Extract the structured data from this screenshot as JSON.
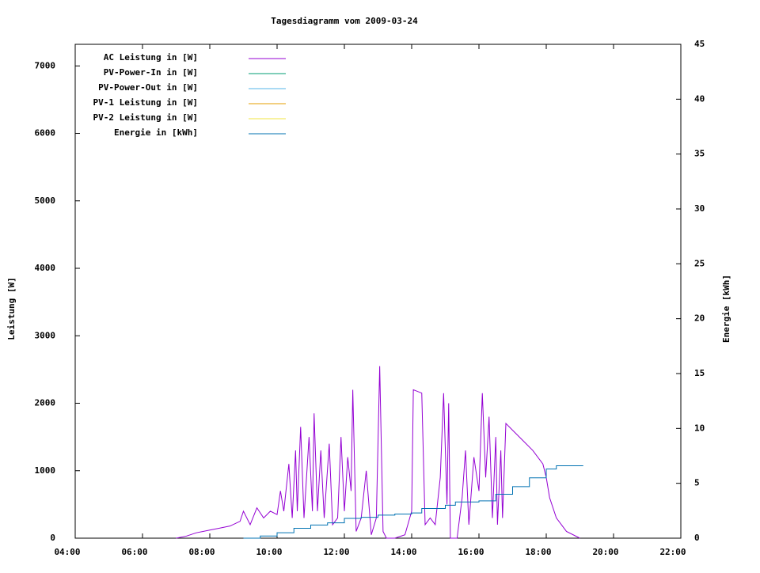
{
  "chart_data": {
    "type": "line",
    "title": "Tagesdiagramm vom 2009-03-24",
    "ylabel": "Leistung [W]",
    "y2label": "Energie [kWh]",
    "xlim": [
      4,
      22
    ],
    "xticks": [
      {
        "value": 4,
        "label": "04:00"
      },
      {
        "value": 6,
        "label": "06:00"
      },
      {
        "value": 8,
        "label": "08:00"
      },
      {
        "value": 10,
        "label": "10:00"
      },
      {
        "value": 12,
        "label": "12:00"
      },
      {
        "value": 14,
        "label": "14:00"
      },
      {
        "value": 16,
        "label": "16:00"
      },
      {
        "value": 18,
        "label": "18:00"
      },
      {
        "value": 20,
        "label": "20:00"
      },
      {
        "value": 22,
        "label": "22:00"
      }
    ],
    "ylim": [
      0,
      7320
    ],
    "yticks": [
      0,
      1000,
      2000,
      3000,
      4000,
      5000,
      6000,
      7000
    ],
    "y2lim": [
      0,
      45
    ],
    "y2ticks": [
      0,
      5,
      10,
      15,
      20,
      25,
      30,
      35,
      40,
      45
    ],
    "legend": "top-left",
    "series": [
      {
        "name": "AC Leistung in [W]",
        "color": "#9400d3",
        "x": [
          7.0,
          7.3,
          7.6,
          8.0,
          8.3,
          8.6,
          8.9,
          9.0,
          9.2,
          9.4,
          9.6,
          9.8,
          10.0,
          10.1,
          10.2,
          10.35,
          10.45,
          10.55,
          10.6,
          10.7,
          10.8,
          10.95,
          11.05,
          11.1,
          11.2,
          11.3,
          11.4,
          11.55,
          11.65,
          11.8,
          11.9,
          12.0,
          12.1,
          12.2,
          12.25,
          12.35,
          12.5,
          12.65,
          12.8,
          12.95,
          13.05,
          13.15,
          13.25,
          13.5,
          13.8,
          14.0,
          14.05,
          14.3,
          14.4,
          14.55,
          14.7,
          14.85,
          14.95,
          15.05,
          15.1,
          15.15,
          15.35,
          15.5,
          15.6,
          15.7,
          15.85,
          16.0,
          16.1,
          16.2,
          16.3,
          16.4,
          16.5,
          16.55,
          16.65,
          16.7,
          16.8,
          17.0,
          17.3,
          17.6,
          17.9,
          18.0,
          18.1,
          18.3,
          18.6,
          19.0
        ],
        "values": [
          0,
          30,
          80,
          120,
          150,
          180,
          250,
          400,
          200,
          450,
          300,
          400,
          350,
          700,
          400,
          1100,
          300,
          1300,
          400,
          1650,
          300,
          1500,
          400,
          1850,
          400,
          1300,
          300,
          1400,
          200,
          300,
          1500,
          400,
          1200,
          700,
          2200,
          100,
          300,
          1000,
          50,
          300,
          2550,
          100,
          0,
          0,
          50,
          400,
          2200,
          2150,
          200,
          300,
          200,
          900,
          2150,
          500,
          2000,
          0,
          0,
          600,
          1300,
          200,
          1200,
          700,
          2150,
          900,
          1800,
          300,
          1500,
          200,
          1300,
          300,
          1700,
          1600,
          1450,
          1300,
          1100,
          900,
          600,
          300,
          100,
          0
        ]
      },
      {
        "name": "PV-Power-In in [W]",
        "color": "#009e73",
        "x": [],
        "values": []
      },
      {
        "name": "PV-Power-Out in [W]",
        "color": "#56b4e9",
        "x": [],
        "values": []
      },
      {
        "name": "PV-1 Leistung in [W]",
        "color": "#e69f00",
        "x": [],
        "values": []
      },
      {
        "name": "PV-2 Leistung in [W]",
        "color": "#f0e442",
        "x": [],
        "values": []
      },
      {
        "name": "Energie in [kWh]",
        "color": "#0072b2",
        "axis": "y2",
        "step": true,
        "x": [
          9.0,
          9.5,
          10.0,
          10.5,
          11.0,
          11.5,
          12.0,
          12.5,
          13.0,
          13.5,
          14.0,
          14.3,
          15.0,
          15.3,
          16.0,
          16.5,
          17.0,
          17.5,
          18.0,
          18.3,
          19.1
        ],
        "values": [
          0,
          0.2,
          0.5,
          0.9,
          1.2,
          1.4,
          1.8,
          1.9,
          2.1,
          2.2,
          2.3,
          2.7,
          3.0,
          3.3,
          3.4,
          4.0,
          4.7,
          5.5,
          6.3,
          6.6,
          6.6
        ]
      }
    ]
  }
}
